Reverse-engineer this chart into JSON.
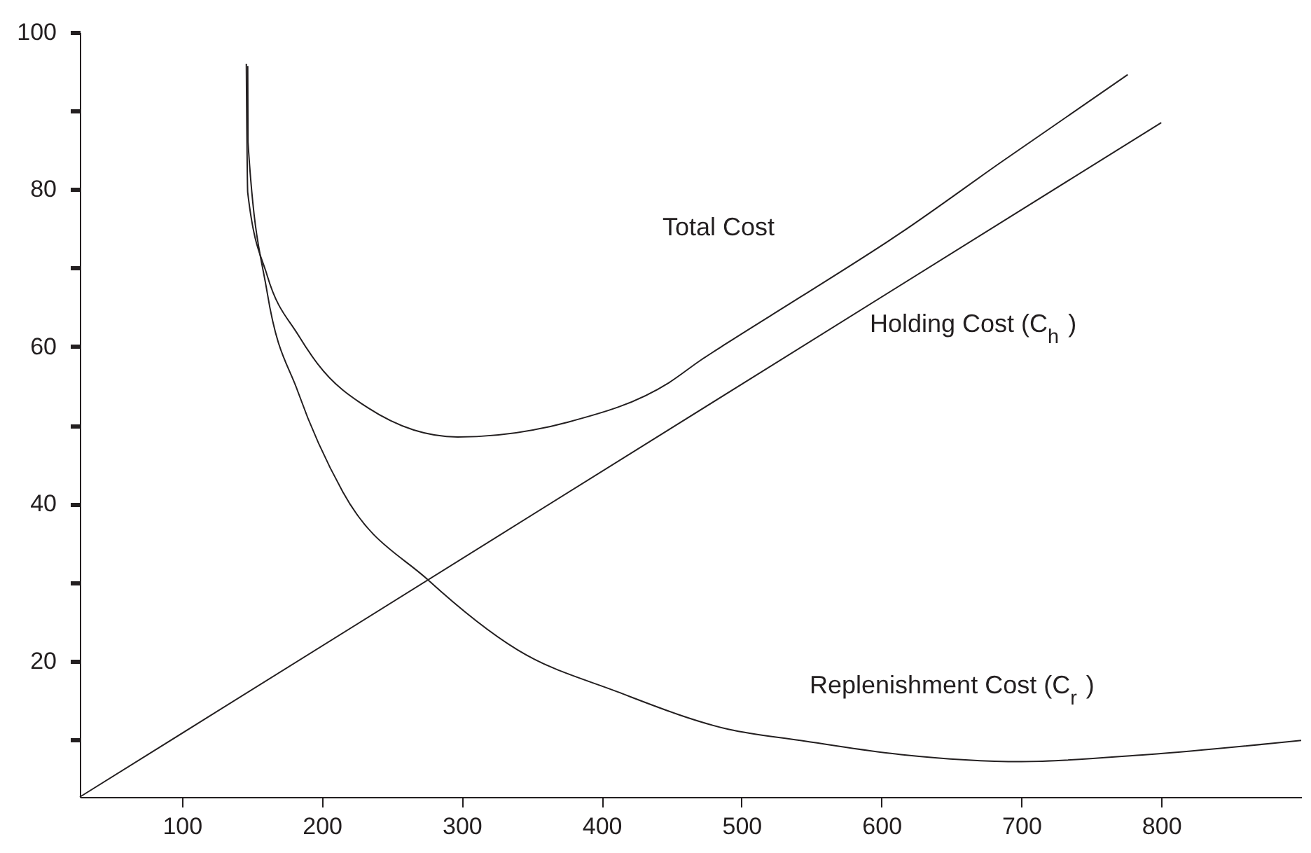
{
  "chart_data": {
    "type": "line",
    "xlim": [
      27,
      900
    ],
    "ylim": [
      2.7,
      100
    ],
    "xticks": [
      100,
      200,
      300,
      400,
      500,
      600,
      700,
      800
    ],
    "yticks": [
      {
        "value": 10,
        "label": null
      },
      20,
      {
        "value": 30,
        "label": null
      },
      40,
      {
        "value": 50,
        "label": null
      },
      60,
      {
        "value": 70,
        "label": null
      },
      80,
      {
        "value": 90,
        "label": null
      },
      100
    ],
    "grid": false,
    "marker": "none",
    "line_style": "solid",
    "series": [
      {
        "name": "Total Cost",
        "color": "#231f20",
        "x": [
          146,
          147,
          161,
          183,
          197,
          233,
          297,
          376,
          448,
          471,
          491,
          542,
          614,
          685,
          776
        ],
        "values": [
          96,
          79.6,
          69,
          61.5,
          57.8,
          52.2,
          48.5,
          50.4,
          55.4,
          58.3,
          60.6,
          66.3,
          74.5,
          83.4,
          94.6
        ]
      },
      {
        "name": "Holding Cost (C$_{h}$ )",
        "color": "#231f20",
        "x": [
          27,
          800
        ],
        "values": [
          2.7,
          88.5
        ]
      },
      {
        "name": "Replenishment Cost (C$_{r}$ )",
        "color": "#231f20",
        "x": [
          147,
          147.2,
          161,
          183,
          215,
          276,
          340,
          411,
          491,
          542,
          614,
          700,
          790,
          900
        ],
        "values": [
          95.7,
          86,
          66.8,
          54.2,
          41.5,
          30.3,
          21.4,
          16.1,
          11.3,
          9.9,
          8.1,
          7.2,
          8.1,
          9.9
        ]
      }
    ]
  }
}
